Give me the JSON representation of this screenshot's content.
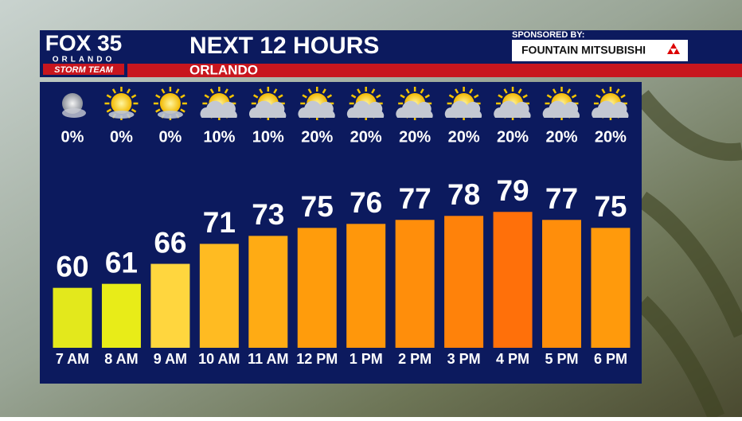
{
  "chart_data": {
    "type": "bar",
    "logo": "FOX 35",
    "logo_city": "ORLANDO",
    "logo_team": "STORM TEAM",
    "title": "NEXT 12 HOURS",
    "subtitle": "ORLANDO",
    "sponsor_label": "SPONSORED BY:",
    "sponsor": "FOUNTAIN MITSUBISHI",
    "categories": [
      "7 AM",
      "8 AM",
      "9 AM",
      "10 AM",
      "11 AM",
      "12 PM",
      "1 PM",
      "2 PM",
      "3 PM",
      "4 PM",
      "5 PM",
      "6 PM"
    ],
    "values": [
      60,
      61,
      66,
      71,
      73,
      75,
      76,
      77,
      78,
      79,
      77,
      75
    ],
    "colors": [
      "#e3e81c",
      "#e8ec18",
      "#ffd63e",
      "#ffbb22",
      "#ffab14",
      "#ff9c0c",
      "#ff970b",
      "#ff8e0b",
      "#ff820a",
      "#ff700a",
      "#ff8e0b",
      "#ff9a0c"
    ],
    "precip_labels": [
      "0%",
      "0%",
      "0%",
      "10%",
      "10%",
      "20%",
      "20%",
      "20%",
      "20%",
      "20%",
      "20%",
      "20%"
    ],
    "ylim": [
      45,
      91
    ]
  }
}
